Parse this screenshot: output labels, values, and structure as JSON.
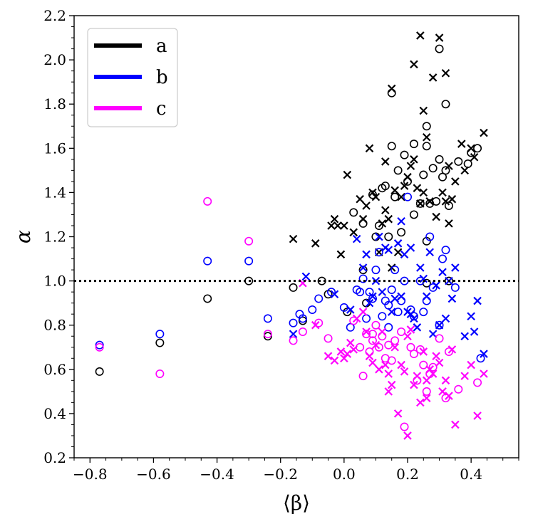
{
  "chart_data": {
    "type": "scatter",
    "xlabel": "⟨β⟩",
    "ylabel": "α",
    "xlim": [
      -0.85,
      0.55
    ],
    "ylim": [
      0.2,
      2.2
    ],
    "x_ticks": [
      -0.8,
      -0.6,
      -0.4,
      -0.2,
      0.0,
      0.2,
      0.4
    ],
    "x_tick_labels": [
      "−0.8",
      "−0.6",
      "−0.4",
      "−0.2",
      "0.0",
      "0.2",
      "0.4"
    ],
    "y_ticks": [
      0.2,
      0.4,
      0.6,
      0.8,
      1.0,
      1.2,
      1.4,
      1.6,
      1.8,
      2.0,
      2.2
    ],
    "y_tick_labels": [
      "0.2",
      "0.4",
      "0.6",
      "0.8",
      "1.0",
      "1.2",
      "1.4",
      "1.6",
      "1.8",
      "2.0",
      "2.2"
    ],
    "reference_line": {
      "y": 1.0,
      "style": "dotted",
      "color": "#000000"
    },
    "legend": {
      "position": "top-left"
    },
    "series": [
      {
        "name": "a",
        "color": "#000000",
        "circles": [
          [
            -0.77,
            0.59
          ],
          [
            -0.58,
            0.72
          ],
          [
            -0.43,
            0.92
          ],
          [
            -0.3,
            1.0
          ],
          [
            -0.24,
            0.75
          ],
          [
            -0.16,
            0.97
          ],
          [
            -0.13,
            0.82
          ],
          [
            -0.07,
            1.0
          ],
          [
            -0.05,
            0.94
          ],
          [
            0.01,
            0.86
          ],
          [
            0.03,
            1.31
          ],
          [
            0.06,
            1.26
          ],
          [
            0.06,
            1.05
          ],
          [
            0.07,
            0.9
          ],
          [
            0.09,
            1.39
          ],
          [
            0.1,
            1.2
          ],
          [
            0.11,
            1.25
          ],
          [
            0.12,
            1.42
          ],
          [
            0.13,
            1.43
          ],
          [
            0.14,
            1.2
          ],
          [
            0.15,
            1.61
          ],
          [
            0.15,
            1.85
          ],
          [
            0.16,
            1.38
          ],
          [
            0.17,
            1.5
          ],
          [
            0.18,
            1.22
          ],
          [
            0.19,
            1.57
          ],
          [
            0.2,
            1.45
          ],
          [
            0.22,
            1.62
          ],
          [
            0.22,
            1.3
          ],
          [
            0.24,
            1.35
          ],
          [
            0.25,
            1.48
          ],
          [
            0.26,
            1.7
          ],
          [
            0.26,
            1.61
          ],
          [
            0.26,
            1.18
          ],
          [
            0.26,
            0.99
          ],
          [
            0.27,
            1.35
          ],
          [
            0.28,
            1.51
          ],
          [
            0.29,
            1.36
          ],
          [
            0.3,
            2.05
          ],
          [
            0.3,
            1.55
          ],
          [
            0.31,
            1.47
          ],
          [
            0.32,
            1.8
          ],
          [
            0.32,
            1.5
          ],
          [
            0.33,
            1.34
          ],
          [
            0.36,
            1.54
          ],
          [
            0.39,
            1.53
          ],
          [
            0.4,
            1.58
          ],
          [
            0.42,
            1.6
          ],
          [
            0.33,
            1.0
          ]
        ],
        "crosses": [
          [
            -0.16,
            1.19
          ],
          [
            -0.09,
            1.17
          ],
          [
            -0.04,
            1.25
          ],
          [
            -0.03,
            1.28
          ],
          [
            -0.02,
            1.25
          ],
          [
            -0.01,
            1.12
          ],
          [
            0.0,
            1.25
          ],
          [
            0.01,
            1.48
          ],
          [
            0.03,
            1.22
          ],
          [
            0.05,
            1.37
          ],
          [
            0.06,
            1.28
          ],
          [
            0.07,
            1.34
          ],
          [
            0.08,
            1.6
          ],
          [
            0.09,
            1.4
          ],
          [
            0.1,
            1.38
          ],
          [
            0.11,
            1.13
          ],
          [
            0.12,
            1.26
          ],
          [
            0.13,
            1.54
          ],
          [
            0.13,
            1.32
          ],
          [
            0.14,
            1.28
          ],
          [
            0.15,
            1.87
          ],
          [
            0.15,
            1.06
          ],
          [
            0.16,
            1.41
          ],
          [
            0.17,
            1.13
          ],
          [
            0.18,
            1.38
          ],
          [
            0.19,
            1.43
          ],
          [
            0.2,
            1.47
          ],
          [
            0.21,
            1.52
          ],
          [
            0.22,
            1.98
          ],
          [
            0.22,
            1.55
          ],
          [
            0.23,
            1.42
          ],
          [
            0.24,
            2.11
          ],
          [
            0.24,
            1.35
          ],
          [
            0.25,
            1.77
          ],
          [
            0.25,
            1.4
          ],
          [
            0.26,
            1.65
          ],
          [
            0.27,
            1.36
          ],
          [
            0.28,
            1.92
          ],
          [
            0.29,
            1.29
          ],
          [
            0.3,
            2.1
          ],
          [
            0.31,
            1.4
          ],
          [
            0.32,
            1.94
          ],
          [
            0.32,
            1.36
          ],
          [
            0.33,
            1.26
          ],
          [
            0.34,
            1.37
          ],
          [
            0.35,
            1.45
          ],
          [
            0.37,
            1.62
          ],
          [
            0.38,
            1.5
          ],
          [
            0.4,
            1.6
          ],
          [
            0.41,
            1.56
          ],
          [
            0.44,
            1.67
          ],
          [
            0.33,
            1.52
          ]
        ]
      },
      {
        "name": "b",
        "color": "#0000ff",
        "circles": [
          [
            -0.77,
            0.71
          ],
          [
            -0.58,
            0.76
          ],
          [
            -0.43,
            1.09
          ],
          [
            -0.3,
            1.09
          ],
          [
            -0.24,
            0.83
          ],
          [
            -0.16,
            0.81
          ],
          [
            -0.14,
            0.85
          ],
          [
            -0.13,
            0.83
          ],
          [
            -0.1,
            0.87
          ],
          [
            -0.08,
            0.92
          ],
          [
            -0.04,
            0.95
          ],
          [
            0.0,
            0.88
          ],
          [
            0.02,
            0.79
          ],
          [
            0.04,
            0.96
          ],
          [
            0.06,
            1.01
          ],
          [
            0.07,
            0.83
          ],
          [
            0.08,
            0.95
          ],
          [
            0.09,
            0.92
          ],
          [
            0.1,
            1.05
          ],
          [
            0.11,
            1.13
          ],
          [
            0.12,
            0.84
          ],
          [
            0.13,
            0.91
          ],
          [
            0.14,
            0.89
          ],
          [
            0.15,
            0.96
          ],
          [
            0.16,
            1.05
          ],
          [
            0.17,
            0.86
          ],
          [
            0.18,
            0.91
          ],
          [
            0.19,
            1.0
          ],
          [
            0.2,
            1.38
          ],
          [
            0.21,
            0.87
          ],
          [
            0.22,
            0.84
          ],
          [
            0.24,
            1.0
          ],
          [
            0.25,
            0.86
          ],
          [
            0.26,
            0.91
          ],
          [
            0.27,
            1.2
          ],
          [
            0.28,
            0.97
          ],
          [
            0.3,
            0.8
          ],
          [
            0.31,
            1.1
          ],
          [
            0.32,
            1.14
          ],
          [
            0.35,
            0.97
          ],
          [
            0.43,
            0.65
          ],
          [
            0.14,
            0.79
          ],
          [
            0.05,
            0.95
          ]
        ],
        "crosses": [
          [
            -0.12,
            1.02
          ],
          [
            -0.16,
            0.76
          ],
          [
            -0.03,
            0.94
          ],
          [
            0.02,
            0.87
          ],
          [
            0.04,
            1.19
          ],
          [
            0.06,
            1.06
          ],
          [
            0.07,
            1.12
          ],
          [
            0.08,
            0.9
          ],
          [
            0.09,
            0.93
          ],
          [
            0.1,
            1.0
          ],
          [
            0.11,
            1.2
          ],
          [
            0.12,
            0.95
          ],
          [
            0.13,
            1.15
          ],
          [
            0.14,
            1.14
          ],
          [
            0.15,
            0.86
          ],
          [
            0.16,
            0.92
          ],
          [
            0.17,
            1.17
          ],
          [
            0.18,
            0.93
          ],
          [
            0.19,
            1.12
          ],
          [
            0.2,
            0.86
          ],
          [
            0.21,
            0.85
          ],
          [
            0.22,
            0.83
          ],
          [
            0.23,
            0.79
          ],
          [
            0.24,
            1.06
          ],
          [
            0.25,
            1.01
          ],
          [
            0.26,
            0.93
          ],
          [
            0.27,
            1.13
          ],
          [
            0.28,
            0.76
          ],
          [
            0.29,
            0.98
          ],
          [
            0.3,
            0.8
          ],
          [
            0.31,
            1.04
          ],
          [
            0.32,
            0.83
          ],
          [
            0.33,
            1.0
          ],
          [
            0.34,
            0.92
          ],
          [
            0.35,
            1.06
          ],
          [
            0.38,
            0.75
          ],
          [
            0.4,
            0.84
          ],
          [
            0.41,
            0.77
          ],
          [
            0.42,
            0.91
          ],
          [
            0.44,
            0.67
          ],
          [
            0.21,
            1.15
          ],
          [
            0.18,
            1.27
          ]
        ]
      },
      {
        "name": "c",
        "color": "#ff00ff",
        "circles": [
          [
            -0.77,
            0.7
          ],
          [
            -0.58,
            0.58
          ],
          [
            -0.43,
            1.36
          ],
          [
            -0.3,
            1.18
          ],
          [
            -0.24,
            0.76
          ],
          [
            -0.16,
            0.73
          ],
          [
            -0.13,
            0.77
          ],
          [
            -0.08,
            0.81
          ],
          [
            -0.05,
            0.74
          ],
          [
            0.03,
            0.82
          ],
          [
            0.05,
            0.7
          ],
          [
            0.06,
            0.57
          ],
          [
            0.07,
            0.76
          ],
          [
            0.08,
            0.68
          ],
          [
            0.09,
            0.73
          ],
          [
            0.1,
            0.8
          ],
          [
            0.11,
            0.7
          ],
          [
            0.12,
            0.75
          ],
          [
            0.13,
            0.65
          ],
          [
            0.14,
            0.71
          ],
          [
            0.15,
            0.64
          ],
          [
            0.16,
            0.73
          ],
          [
            0.18,
            0.77
          ],
          [
            0.19,
            0.34
          ],
          [
            0.21,
            0.7
          ],
          [
            0.22,
            0.67
          ],
          [
            0.23,
            0.55
          ],
          [
            0.24,
            0.69
          ],
          [
            0.25,
            0.62
          ],
          [
            0.26,
            0.5
          ],
          [
            0.27,
            0.58
          ],
          [
            0.28,
            0.61
          ],
          [
            0.3,
            0.74
          ],
          [
            0.32,
            0.47
          ],
          [
            0.33,
            0.68
          ],
          [
            0.36,
            0.51
          ],
          [
            0.42,
            0.54
          ],
          [
            0.09,
            0.76
          ]
        ],
        "crosses": [
          [
            -0.05,
            0.66
          ],
          [
            -0.03,
            0.64
          ],
          [
            -0.01,
            0.68
          ],
          [
            0.0,
            0.65
          ],
          [
            0.01,
            0.67
          ],
          [
            0.02,
            0.72
          ],
          [
            0.03,
            0.69
          ],
          [
            0.04,
            0.83
          ],
          [
            0.06,
            0.86
          ],
          [
            0.07,
            0.77
          ],
          [
            0.08,
            0.66
          ],
          [
            0.09,
            0.63
          ],
          [
            0.1,
            0.71
          ],
          [
            0.11,
            0.6
          ],
          [
            0.12,
            0.77
          ],
          [
            0.13,
            0.62
          ],
          [
            0.14,
            0.58
          ],
          [
            0.15,
            0.53
          ],
          [
            0.16,
            0.7
          ],
          [
            0.17,
            0.4
          ],
          [
            0.18,
            0.62
          ],
          [
            0.19,
            0.59
          ],
          [
            0.2,
            0.75
          ],
          [
            0.21,
            0.78
          ],
          [
            0.22,
            0.53
          ],
          [
            0.23,
            0.57
          ],
          [
            0.24,
            0.45
          ],
          [
            0.25,
            0.68
          ],
          [
            0.26,
            0.55
          ],
          [
            0.27,
            0.6
          ],
          [
            0.28,
            0.58
          ],
          [
            0.29,
            0.66
          ],
          [
            0.3,
            0.63
          ],
          [
            0.31,
            0.5
          ],
          [
            0.32,
            0.55
          ],
          [
            0.33,
            0.48
          ],
          [
            0.34,
            0.69
          ],
          [
            0.35,
            0.35
          ],
          [
            0.38,
            0.57
          ],
          [
            0.4,
            0.62
          ],
          [
            0.42,
            0.39
          ],
          [
            0.44,
            0.58
          ],
          [
            0.14,
            0.5
          ],
          [
            0.2,
            0.3
          ],
          [
            0.26,
            0.47
          ],
          [
            -0.13,
            0.99
          ],
          [
            -0.09,
            0.8
          ]
        ]
      }
    ]
  }
}
